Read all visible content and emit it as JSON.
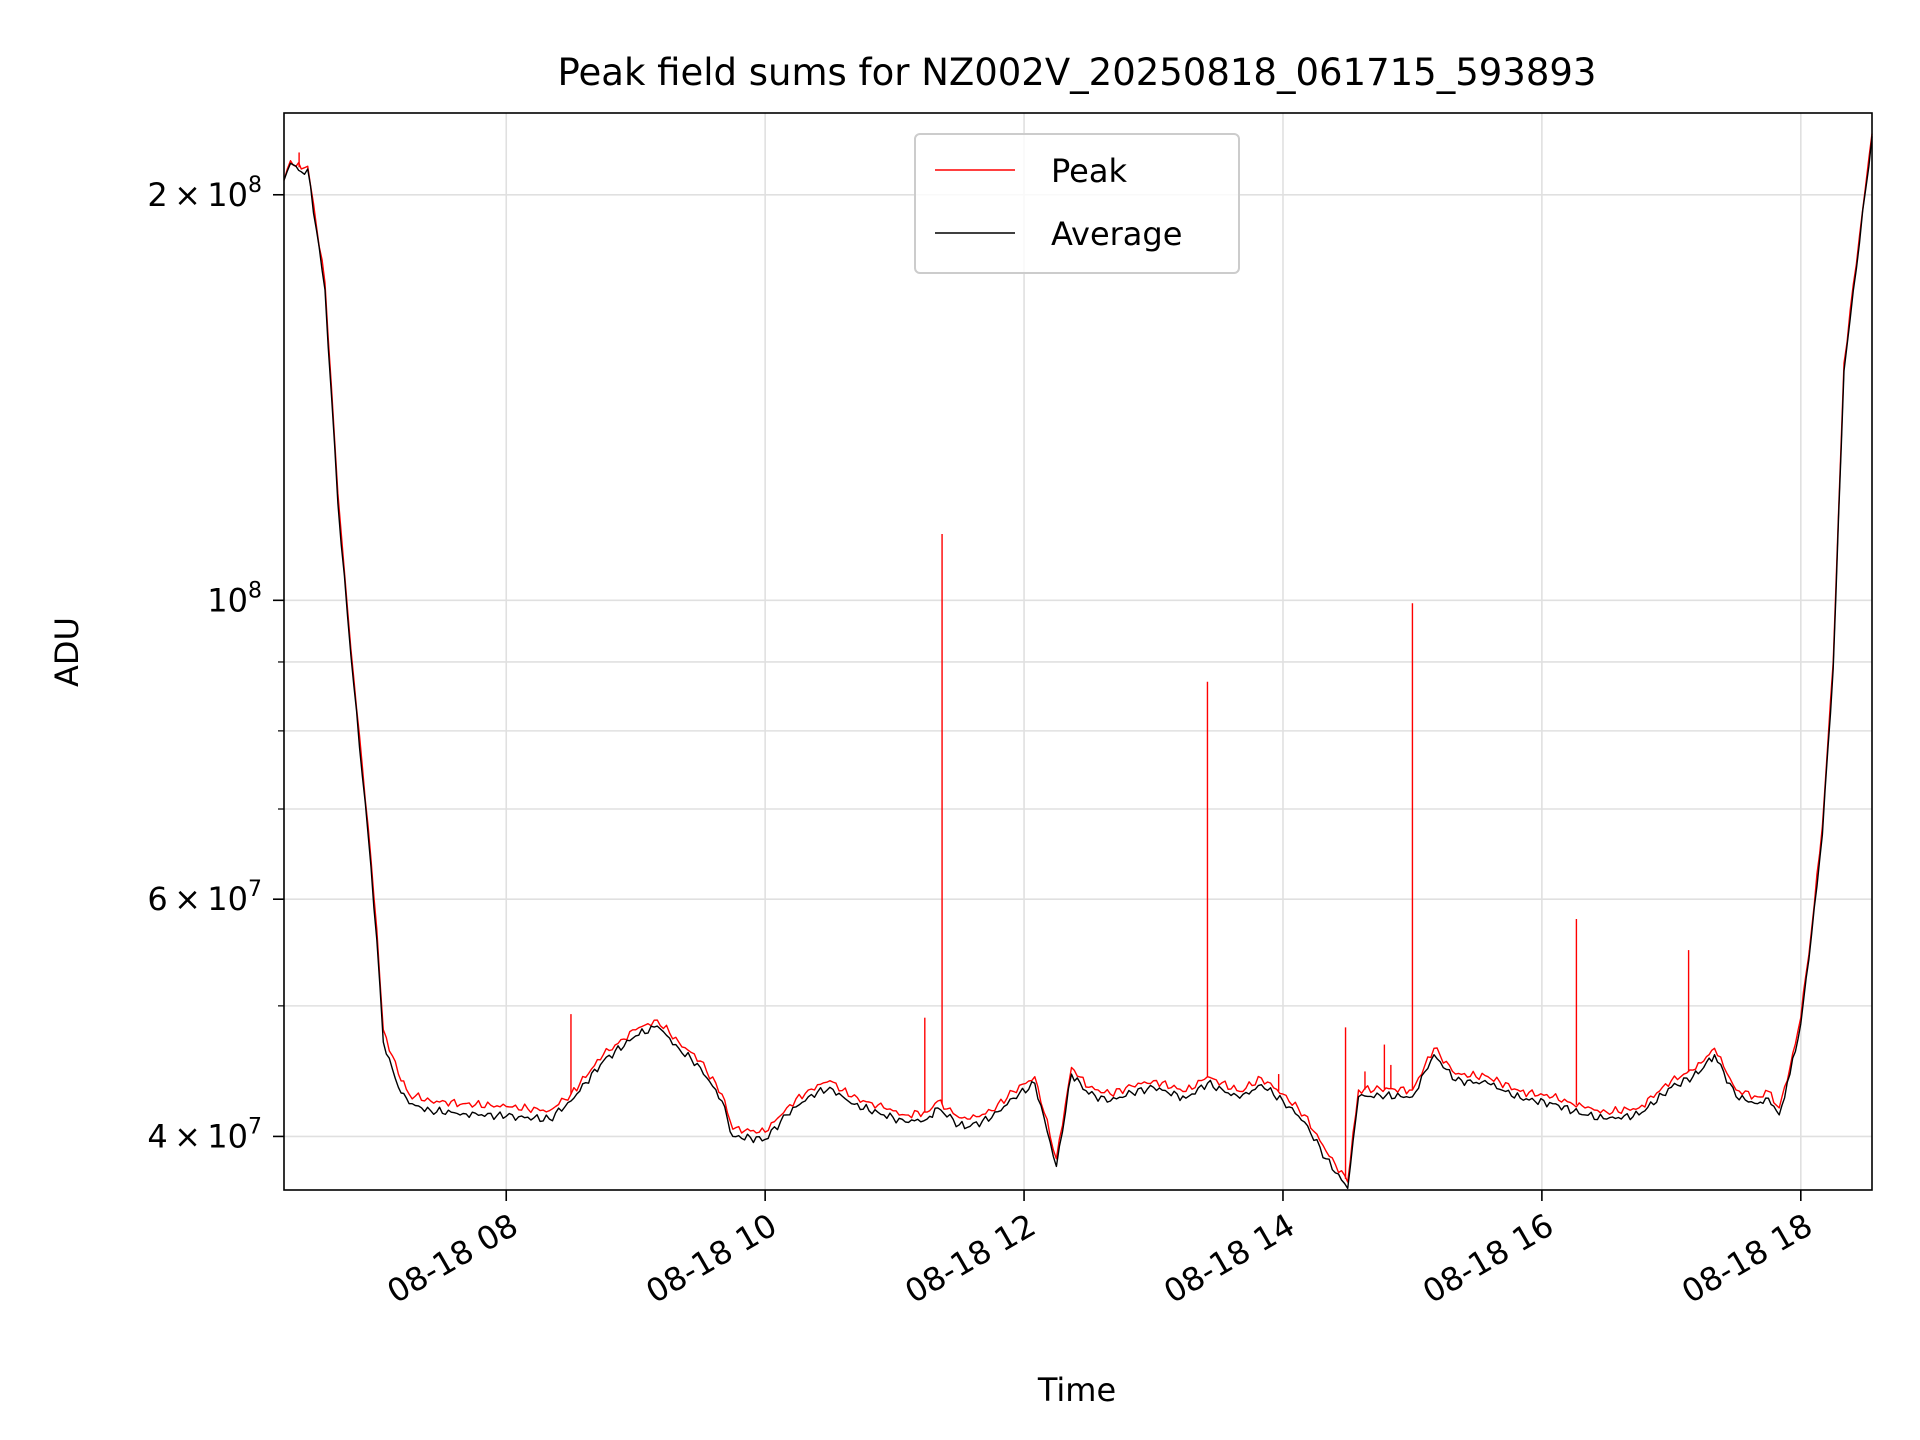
{
  "chart_data": {
    "type": "line",
    "title": "Peak field sums for NZ002V_20250818_061715_593893",
    "xlabel": "Time",
    "ylabel": "ADU",
    "y_scale": "log",
    "ylim": [
      36500000,
      230000000
    ],
    "xlim": [
      "2025-08-18 06:17",
      "2025-08-18 18:33"
    ],
    "grid": true,
    "legend_position": "upper center",
    "x_ticks": [
      {
        "value": "2025-08-18 08:00",
        "label": "08-18 08"
      },
      {
        "value": "2025-08-18 10:00",
        "label": "08-18 10"
      },
      {
        "value": "2025-08-18 12:00",
        "label": "08-18 12"
      },
      {
        "value": "2025-08-18 14:00",
        "label": "08-18 14"
      },
      {
        "value": "2025-08-18 16:00",
        "label": "08-18 16"
      },
      {
        "value": "2025-08-18 18:00",
        "label": "08-18 18"
      }
    ],
    "y_major_ticks": [
      {
        "value": 40000000,
        "mantissa": "4",
        "exponent": "7"
      },
      {
        "value": 60000000,
        "mantissa": "6",
        "exponent": "7"
      },
      {
        "value": 100000000,
        "mantissa": "",
        "exponent": "8"
      },
      {
        "value": 200000000,
        "mantissa": "2",
        "exponent": "8"
      }
    ],
    "y_minor_ticks": [
      50000000,
      70000000,
      80000000,
      90000000
    ],
    "series": [
      {
        "name": "Peak",
        "color": "#ff0000",
        "x": [
          "2025-08-18 06:17",
          "2025-08-18 06:20",
          "2025-08-18 06:25",
          "2025-08-18 06:28",
          "2025-08-18 06:36",
          "2025-08-18 06:42",
          "2025-08-18 06:48",
          "2025-08-18 06:56",
          "2025-08-18 07:00",
          "2025-08-18 07:03",
          "2025-08-18 07:10",
          "2025-08-18 07:15",
          "2025-08-18 07:25",
          "2025-08-18 07:40",
          "2025-08-18 08:00",
          "2025-08-18 08:20",
          "2025-08-18 08:30",
          "2025-08-18 08:45",
          "2025-08-18 09:00",
          "2025-08-18 09:10",
          "2025-08-18 09:20",
          "2025-08-18 09:30",
          "2025-08-18 09:40",
          "2025-08-18 09:45",
          "2025-08-18 10:00",
          "2025-08-18 10:10",
          "2025-08-18 10:20",
          "2025-08-18 10:30",
          "2025-08-18 10:40",
          "2025-08-18 10:55",
          "2025-08-18 11:05",
          "2025-08-18 11:15",
          "2025-08-18 11:20",
          "2025-08-18 11:30",
          "2025-08-18 11:35",
          "2025-08-18 11:45",
          "2025-08-18 11:55",
          "2025-08-18 12:05",
          "2025-08-18 12:15",
          "2025-08-18 12:22",
          "2025-08-18 12:30",
          "2025-08-18 12:40",
          "2025-08-18 12:50",
          "2025-08-18 13:00",
          "2025-08-18 13:15",
          "2025-08-18 13:25",
          "2025-08-18 13:40",
          "2025-08-18 13:50",
          "2025-08-18 14:00",
          "2025-08-18 14:10",
          "2025-08-18 14:20",
          "2025-08-18 14:30",
          "2025-08-18 14:35",
          "2025-08-18 14:45",
          "2025-08-18 15:00",
          "2025-08-18 15:10",
          "2025-08-18 15:20",
          "2025-08-18 15:35",
          "2025-08-18 15:50",
          "2025-08-18 16:05",
          "2025-08-18 16:20",
          "2025-08-18 16:30",
          "2025-08-18 16:45",
          "2025-08-18 17:00",
          "2025-08-18 17:10",
          "2025-08-18 17:15",
          "2025-08-18 17:20",
          "2025-08-18 17:30",
          "2025-08-18 17:40",
          "2025-08-18 17:45",
          "2025-08-18 17:50",
          "2025-08-18 17:55",
          "2025-08-18 18:00",
          "2025-08-18 18:05",
          "2025-08-18 18:10",
          "2025-08-18 18:15",
          "2025-08-18 18:20",
          "2025-08-18 18:33"
        ],
        "y": [
          205000000,
          212000000,
          209000000,
          210000000,
          172000000,
          120000000,
          92000000,
          68000000,
          57000000,
          48000000,
          44500000,
          43000000,
          42500000,
          42300000,
          42100000,
          41800000,
          43000000,
          46000000,
          48000000,
          48800000,
          47000000,
          45500000,
          43000000,
          40500000,
          40300000,
          42000000,
          43300000,
          44000000,
          42800000,
          42000000,
          41500000,
          41700000,
          42500000,
          41300000,
          41200000,
          41800000,
          43200000,
          44300000,
          38500000,
          45000000,
          43500000,
          43000000,
          43600000,
          44000000,
          43200000,
          44300000,
          43200000,
          44200000,
          43000000,
          41500000,
          39000000,
          37000000,
          43300000,
          43400000,
          43300000,
          46500000,
          44500000,
          44300000,
          43200000,
          42800000,
          42000000,
          41700000,
          42000000,
          44000000,
          44800000,
          45500000,
          46500000,
          43300000,
          42800000,
          43200000,
          42000000,
          45000000,
          49000000,
          57000000,
          68000000,
          90000000,
          150000000,
          222000000
        ],
        "spikes": [
          {
            "x": "2025-08-18 06:24",
            "y": 215000000
          },
          {
            "x": "2025-08-18 08:30",
            "y": 49300000
          },
          {
            "x": "2025-08-18 11:14",
            "y": 49000000
          },
          {
            "x": "2025-08-18 11:22",
            "y": 112000000
          },
          {
            "x": "2025-08-18 13:25",
            "y": 87000000
          },
          {
            "x": "2025-08-18 13:58",
            "y": 44500000
          },
          {
            "x": "2025-08-18 14:29",
            "y": 48200000
          },
          {
            "x": "2025-08-18 14:38",
            "y": 44700000
          },
          {
            "x": "2025-08-18 14:47",
            "y": 46800000
          },
          {
            "x": "2025-08-18 14:50",
            "y": 45200000
          },
          {
            "x": "2025-08-18 15:00",
            "y": 99500000
          },
          {
            "x": "2025-08-18 16:16",
            "y": 58000000
          },
          {
            "x": "2025-08-18 17:08",
            "y": 55000000
          }
        ]
      },
      {
        "name": "Average",
        "color": "#000000",
        "x": [
          "2025-08-18 06:17",
          "2025-08-18 06:20",
          "2025-08-18 06:25",
          "2025-08-18 06:28",
          "2025-08-18 06:36",
          "2025-08-18 06:42",
          "2025-08-18 06:48",
          "2025-08-18 06:56",
          "2025-08-18 07:00",
          "2025-08-18 07:03",
          "2025-08-18 07:10",
          "2025-08-18 07:15",
          "2025-08-18 07:25",
          "2025-08-18 07:40",
          "2025-08-18 08:00",
          "2025-08-18 08:20",
          "2025-08-18 08:30",
          "2025-08-18 08:45",
          "2025-08-18 09:00",
          "2025-08-18 09:10",
          "2025-08-18 09:20",
          "2025-08-18 09:30",
          "2025-08-18 09:40",
          "2025-08-18 09:45",
          "2025-08-18 10:00",
          "2025-08-18 10:10",
          "2025-08-18 10:20",
          "2025-08-18 10:30",
          "2025-08-18 10:40",
          "2025-08-18 10:55",
          "2025-08-18 11:05",
          "2025-08-18 11:15",
          "2025-08-18 11:20",
          "2025-08-18 11:30",
          "2025-08-18 11:35",
          "2025-08-18 11:45",
          "2025-08-18 11:55",
          "2025-08-18 12:05",
          "2025-08-18 12:15",
          "2025-08-18 12:22",
          "2025-08-18 12:30",
          "2025-08-18 12:40",
          "2025-08-18 12:50",
          "2025-08-18 13:00",
          "2025-08-18 13:15",
          "2025-08-18 13:25",
          "2025-08-18 13:40",
          "2025-08-18 13:50",
          "2025-08-18 14:00",
          "2025-08-18 14:10",
          "2025-08-18 14:20",
          "2025-08-18 14:30",
          "2025-08-18 14:35",
          "2025-08-18 14:45",
          "2025-08-18 15:00",
          "2025-08-18 15:10",
          "2025-08-18 15:20",
          "2025-08-18 15:35",
          "2025-08-18 15:50",
          "2025-08-18 16:05",
          "2025-08-18 16:20",
          "2025-08-18 16:30",
          "2025-08-18 16:45",
          "2025-08-18 17:00",
          "2025-08-18 17:10",
          "2025-08-18 17:15",
          "2025-08-18 17:20",
          "2025-08-18 17:30",
          "2025-08-18 17:40",
          "2025-08-18 17:45",
          "2025-08-18 17:50",
          "2025-08-18 17:55",
          "2025-08-18 18:00",
          "2025-08-18 18:05",
          "2025-08-18 18:10",
          "2025-08-18 18:15",
          "2025-08-18 18:20",
          "2025-08-18 18:33"
        ],
        "y": [
          205000000,
          211000000,
          208000000,
          209000000,
          170000000,
          118000000,
          91000000,
          67000000,
          56000000,
          47000000,
          43500000,
          42300000,
          41800000,
          41600000,
          41400000,
          41200000,
          42500000,
          45500000,
          47500000,
          48300000,
          46500000,
          45000000,
          42500000,
          40000000,
          39800000,
          41500000,
          42800000,
          43500000,
          42300000,
          41500000,
          41000000,
          41200000,
          42000000,
          40800000,
          40700000,
          41300000,
          42700000,
          43800000,
          38000000,
          44500000,
          43000000,
          42500000,
          43100000,
          43500000,
          42700000,
          43800000,
          42700000,
          43700000,
          42500000,
          41000000,
          38500000,
          36600000,
          42800000,
          42900000,
          42800000,
          46000000,
          44000000,
          43800000,
          42700000,
          42300000,
          41500000,
          41200000,
          41500000,
          43500000,
          44300000,
          45000000,
          46000000,
          42800000,
          42300000,
          42700000,
          41500000,
          44500000,
          48500000,
          56500000,
          67000000,
          89000000,
          148000000,
          221000000
        ]
      }
    ]
  }
}
